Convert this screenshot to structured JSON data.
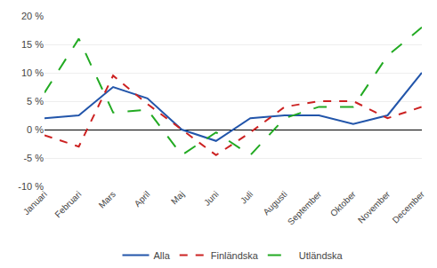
{
  "chart_data": {
    "type": "line",
    "categories": [
      "Januari",
      "Februari",
      "Mars",
      "April",
      "Maj",
      "Juni",
      "Juli",
      "Augusti",
      "September",
      "Oktober",
      "November",
      "December"
    ],
    "series": [
      {
        "name": "Alla",
        "color": "#2255aa",
        "line_style": "solid",
        "values": [
          2.0,
          2.5,
          7.5,
          5.5,
          0.0,
          -2.0,
          2.0,
          2.5,
          2.5,
          1.0,
          2.5,
          10.0
        ]
      },
      {
        "name": "Finländska",
        "color": "#cc2222",
        "line_style": "dash",
        "values": [
          -1.0,
          -3.0,
          9.5,
          4.5,
          0.0,
          -4.5,
          -0.5,
          4.0,
          5.0,
          5.0,
          2.0,
          4.0
        ]
      },
      {
        "name": "Utländska",
        "color": "#22aa22",
        "line_style": "longdash",
        "values": [
          6.5,
          16.0,
          3.0,
          3.5,
          -4.5,
          -0.5,
          -4.5,
          2.0,
          4.0,
          4.0,
          13.0,
          18.0
        ]
      }
    ],
    "ylim": [
      -10,
      20
    ],
    "yticks": [
      {
        "value": -10,
        "label": "-10 %"
      },
      {
        "value": -5,
        "label": "-5 %"
      },
      {
        "value": 0,
        "label": "0 %"
      },
      {
        "value": 5,
        "label": "5 %"
      },
      {
        "value": 10,
        "label": "10 %"
      },
      {
        "value": 15,
        "label": "15 %"
      },
      {
        "value": 20,
        "label": "20 %"
      }
    ],
    "grid": true,
    "legend": "bottom"
  }
}
